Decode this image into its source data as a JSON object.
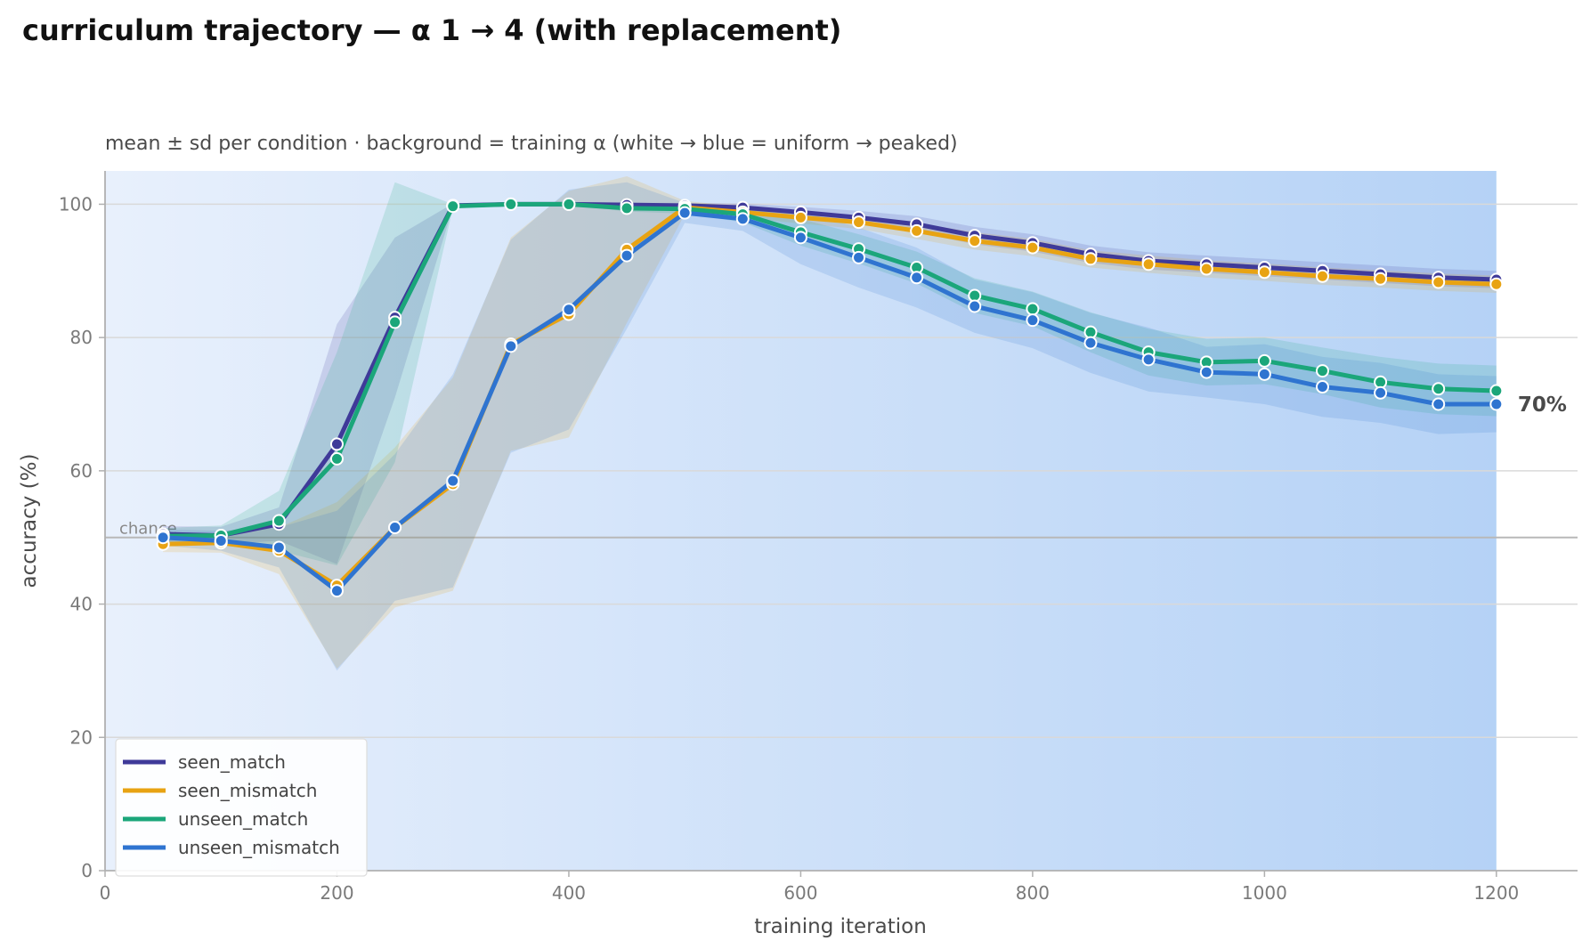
{
  "chart_data": {
    "type": "line",
    "title": "curriculum trajectory — α 1 → 4 (with replacement)",
    "subtitle": "mean ± sd per condition · background = training α (white → blue = uniform → peaked)",
    "xlabel": "training iteration",
    "ylabel": "accuracy (%)",
    "xlim": [
      0,
      1270
    ],
    "ylim": [
      0,
      105
    ],
    "xticks": [
      0,
      200,
      400,
      600,
      800,
      1000,
      1200
    ],
    "yticks": [
      0,
      20,
      40,
      60,
      80,
      100
    ],
    "grid": "horizontal",
    "legend": "lower-left",
    "chance": {
      "label": "chance",
      "value": 50
    },
    "end_label": {
      "text": "70%",
      "series": "unseen_mismatch"
    },
    "background": {
      "description_colors": {
        "from": "#e8f0fc",
        "to": "#b5d2f6"
      },
      "x_end": 1200
    },
    "x": [
      50,
      100,
      150,
      200,
      250,
      300,
      350,
      400,
      450,
      500,
      550,
      600,
      650,
      700,
      750,
      800,
      850,
      900,
      950,
      1000,
      1050,
      1100,
      1150,
      1200
    ],
    "series": [
      {
        "name": "seen_match",
        "color": "#3f3a99",
        "values": [
          50.5,
          50.3,
          52.0,
          64.0,
          83.0,
          99.8,
          100,
          100,
          99.9,
          99.8,
          99.5,
          98.8,
          98.0,
          97.0,
          95.3,
          94.2,
          92.5,
          91.5,
          91.0,
          90.5,
          90.0,
          89.5,
          89.0,
          88.7
        ],
        "sd": [
          1.2,
          1.3,
          2.5,
          18.0,
          12.0,
          0.3,
          0.1,
          0.1,
          0.3,
          0.4,
          0.6,
          0.8,
          1.0,
          1.2,
          1.3,
          1.3,
          1.3,
          1.3,
          1.3,
          1.3,
          1.3,
          1.3,
          1.3,
          1.3
        ]
      },
      {
        "name": "seen_mismatch",
        "color": "#e8a313",
        "values": [
          49.0,
          49.2,
          48.0,
          42.8,
          51.5,
          58.0,
          79.0,
          83.5,
          93.2,
          99.5,
          98.8,
          98.0,
          97.3,
          96.0,
          94.5,
          93.5,
          91.8,
          91.0,
          90.3,
          89.8,
          89.2,
          88.8,
          88.3,
          88.0
        ],
        "sd": [
          1.2,
          1.5,
          3.5,
          12.5,
          12.0,
          16.0,
          16.0,
          18.5,
          11.0,
          1.0,
          0.8,
          0.9,
          1.0,
          1.2,
          1.3,
          1.3,
          1.3,
          1.3,
          1.3,
          1.3,
          1.3,
          1.3,
          1.3,
          1.3
        ]
      },
      {
        "name": "unseen_match",
        "color": "#1ba67a",
        "values": [
          50.2,
          50.3,
          52.5,
          61.8,
          82.3,
          99.7,
          100,
          100,
          99.4,
          99.3,
          98.5,
          95.8,
          93.3,
          90.5,
          86.3,
          84.3,
          80.8,
          77.8,
          76.3,
          76.5,
          75.0,
          73.3,
          72.3,
          72.0
        ],
        "sd": [
          1.2,
          1.5,
          4.5,
          16.0,
          21.0,
          0.3,
          0.1,
          0.1,
          0.5,
          0.7,
          1.2,
          2.0,
          2.2,
          2.4,
          2.6,
          2.6,
          3.0,
          3.5,
          3.5,
          3.5,
          3.5,
          3.8,
          3.8,
          3.8
        ]
      },
      {
        "name": "unseen_mismatch",
        "color": "#2f74d0",
        "values": [
          50.0,
          49.5,
          48.5,
          42.0,
          51.5,
          58.5,
          78.7,
          84.2,
          92.3,
          98.7,
          97.8,
          95.0,
          92.0,
          89.0,
          84.7,
          82.6,
          79.2,
          76.7,
          74.8,
          74.5,
          72.6,
          71.7,
          70.0,
          70.0
        ],
        "sd": [
          1.2,
          1.5,
          3.0,
          12.0,
          11.0,
          16.0,
          16.0,
          18.0,
          11.0,
          1.5,
          1.8,
          4.0,
          4.5,
          4.5,
          4.0,
          4.2,
          4.5,
          4.8,
          3.8,
          4.5,
          4.5,
          4.5,
          4.5,
          4.2
        ]
      }
    ]
  }
}
